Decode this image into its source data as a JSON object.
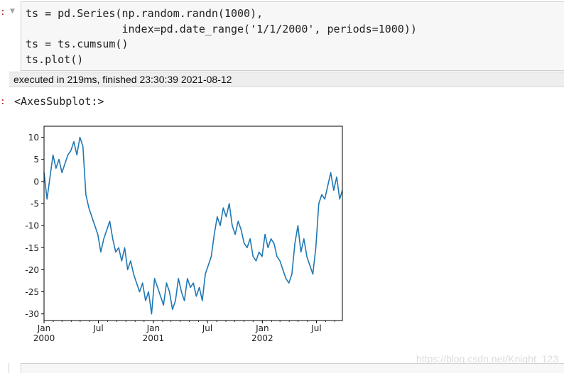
{
  "cells": [
    {
      "input_prompt": ":",
      "code_lines": [
        "ts = pd.Series(np.random.randn(1000),",
        "               index=pd.date_range('1/1/2000', periods=1000))",
        "ts = ts.cumsum()",
        "ts.plot()"
      ],
      "execution_info": "executed in 219ms, finished 23:30:39 2021-08-12",
      "output_prompt": ":",
      "output_text": "<AxesSubplot:>"
    }
  ],
  "watermark": "https://blog.csdn.net/Knight_123",
  "colors": {
    "line": "#1f77b4",
    "prompt": "#b22222"
  },
  "chart_data": {
    "type": "line",
    "x_range": [
      "2000-01-01",
      "2002-09-26"
    ],
    "ylim": [
      -31.5,
      12.5
    ],
    "yticks": [
      10,
      5,
      0,
      -5,
      -10,
      -15,
      -20,
      -25,
      -30
    ],
    "xticks": [
      {
        "date": "2000-01-01",
        "major": "Jan",
        "minor": "2000"
      },
      {
        "date": "2000-07-01",
        "major": "Jul",
        "minor": ""
      },
      {
        "date": "2001-01-01",
        "major": "Jan",
        "minor": "2001"
      },
      {
        "date": "2001-07-01",
        "major": "Jul",
        "minor": ""
      },
      {
        "date": "2002-01-01",
        "major": "Jan",
        "minor": "2002"
      },
      {
        "date": "2002-07-01",
        "major": "Jul",
        "minor": ""
      }
    ],
    "grid": false,
    "series": [
      {
        "x": [
          "2000-01-01",
          "2000-01-11",
          "2000-01-21",
          "2000-01-31",
          "2000-02-10",
          "2000-02-20",
          "2000-03-01",
          "2000-03-11",
          "2000-03-21",
          "2000-03-31",
          "2000-04-10",
          "2000-04-20",
          "2000-04-30",
          "2000-05-10",
          "2000-05-20",
          "2000-05-30",
          "2000-06-09",
          "2000-06-19",
          "2000-06-29",
          "2000-07-09",
          "2000-07-19",
          "2000-07-29",
          "2000-08-08",
          "2000-08-18",
          "2000-08-28",
          "2000-09-07",
          "2000-09-17",
          "2000-09-27",
          "2000-10-07",
          "2000-10-17",
          "2000-10-27",
          "2000-11-06",
          "2000-11-16",
          "2000-11-26",
          "2000-12-06",
          "2000-12-16",
          "2000-12-26",
          "2001-01-05",
          "2001-01-15",
          "2001-01-25",
          "2001-02-04",
          "2001-02-14",
          "2001-02-24",
          "2001-03-06",
          "2001-03-16",
          "2001-03-26",
          "2001-04-05",
          "2001-04-15",
          "2001-04-25",
          "2001-05-05",
          "2001-05-15",
          "2001-05-25",
          "2001-06-04",
          "2001-06-14",
          "2001-06-24",
          "2001-07-04",
          "2001-07-14",
          "2001-07-24",
          "2001-08-03",
          "2001-08-13",
          "2001-08-23",
          "2001-09-02",
          "2001-09-12",
          "2001-09-22",
          "2001-10-02",
          "2001-10-12",
          "2001-10-22",
          "2001-11-01",
          "2001-11-11",
          "2001-11-21",
          "2001-12-01",
          "2001-12-11",
          "2001-12-21",
          "2001-12-31",
          "2002-01-10",
          "2002-01-20",
          "2002-01-30",
          "2002-02-09",
          "2002-02-19",
          "2002-03-01",
          "2002-03-11",
          "2002-03-21",
          "2002-03-31",
          "2002-04-10",
          "2002-04-20",
          "2002-04-30",
          "2002-05-10",
          "2002-05-20",
          "2002-05-30",
          "2002-06-09",
          "2002-06-19",
          "2002-06-29",
          "2002-07-09",
          "2002-07-19",
          "2002-07-29",
          "2002-08-08",
          "2002-08-18",
          "2002-08-28",
          "2002-09-07",
          "2002-09-17",
          "2002-09-26"
        ],
        "y": [
          2,
          -4,
          1,
          6,
          3,
          5,
          2,
          4,
          6,
          7,
          9,
          6,
          10,
          8,
          -3,
          -6,
          -8,
          -10,
          -12,
          -16,
          -13,
          -11,
          -9,
          -13,
          -16,
          -15,
          -18,
          -15,
          -20,
          -18,
          -21,
          -23,
          -25,
          -23,
          -27,
          -25,
          -30,
          -22,
          -24,
          -26,
          -28,
          -23,
          -25,
          -29,
          -27,
          -22,
          -25,
          -27,
          -22,
          -24,
          -23,
          -26,
          -24,
          -27,
          -21,
          -19,
          -17,
          -12,
          -8,
          -10,
          -6,
          -8,
          -5,
          -10,
          -12,
          -9,
          -11,
          -14,
          -15,
          -13,
          -17,
          -18,
          -16,
          -17,
          -12,
          -15,
          -13,
          -14,
          -17,
          -18,
          -20,
          -22,
          -23,
          -21,
          -14,
          -10,
          -16,
          -13,
          -17,
          -19,
          -21,
          -15,
          -5,
          -3,
          -4,
          -1,
          2,
          -2,
          1,
          -4,
          -2
        ]
      }
    ]
  }
}
